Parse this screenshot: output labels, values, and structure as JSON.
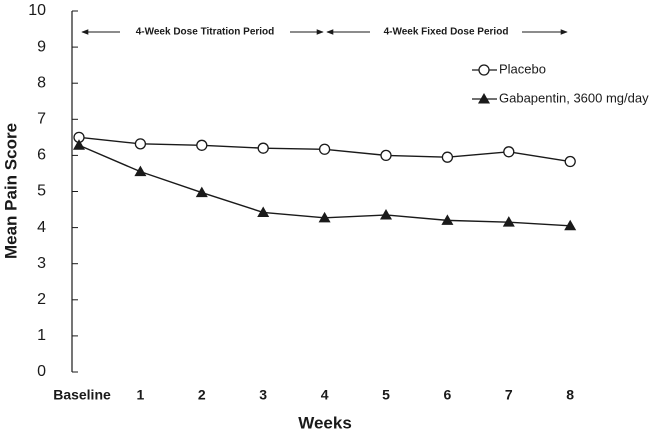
{
  "chart_data": {
    "type": "line",
    "x_label": "Weeks",
    "y_label": "Mean Pain Score",
    "annotations": [
      "4-Week Dose Titration Period",
      "4-Week Fixed Dose Period"
    ],
    "categories": [
      "Baseline",
      "1",
      "2",
      "3",
      "4",
      "5",
      "6",
      "7",
      "8"
    ],
    "series": [
      {
        "name": "Placebo",
        "color": "#1a1a1a",
        "marker": "open-circle",
        "values": [
          6.5,
          6.32,
          6.28,
          6.2,
          6.17,
          6.0,
          5.95,
          6.1,
          5.83
        ]
      },
      {
        "name": "Gabapentin, 3600 mg/day",
        "color": "#1a1a1a",
        "marker": "filled-triangle",
        "values": [
          6.28,
          5.55,
          4.97,
          4.42,
          4.27,
          4.35,
          4.2,
          4.15,
          4.05
        ]
      }
    ],
    "ylim": [
      0,
      10
    ],
    "yticks": [
      0,
      1,
      2,
      3,
      4,
      5,
      6,
      7,
      8,
      9,
      10
    ],
    "grid": false
  }
}
